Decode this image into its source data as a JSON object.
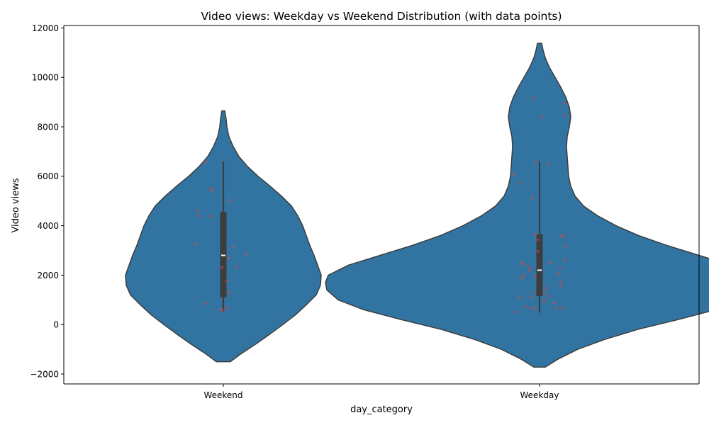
{
  "chart_data": {
    "type": "violin",
    "title": "Video views: Weekday vs Weekend Distribution (with data points)",
    "xlabel": "day_category",
    "ylabel": "Video views",
    "ylim": [
      -2400,
      12100
    ],
    "yticks": [
      -2000,
      0,
      2000,
      4000,
      6000,
      8000,
      10000,
      12000
    ],
    "ytick_labels": [
      "−2000",
      "0",
      "2000",
      "4000",
      "6000",
      "8000",
      "10000",
      "12000"
    ],
    "categories": [
      "Weekend",
      "Weekday"
    ],
    "grid": false,
    "colors": {
      "violin": "#3274a1",
      "violin_edge": "#3d3d3d",
      "box": "#3d3d3d",
      "median": "#ffffff",
      "points": "#e8413f"
    },
    "violins": [
      {
        "category": "Weekend",
        "box": {
          "q1": 1100,
          "median": 2800,
          "q3": 4550,
          "whisker_low": 520,
          "whisker_high": 6600
        },
        "density": [
          [
            -1500,
            0.1
          ],
          [
            -1200,
            0.24
          ],
          [
            -800,
            0.45
          ],
          [
            -400,
            0.65
          ],
          [
            0,
            0.84
          ],
          [
            400,
            1.02
          ],
          [
            800,
            1.17
          ],
          [
            1200,
            1.31
          ],
          [
            1600,
            1.37
          ],
          [
            2000,
            1.38
          ],
          [
            2400,
            1.33
          ],
          [
            2800,
            1.28
          ],
          [
            3200,
            1.22
          ],
          [
            3600,
            1.17
          ],
          [
            4000,
            1.12
          ],
          [
            4400,
            1.05
          ],
          [
            4800,
            0.96
          ],
          [
            5200,
            0.82
          ],
          [
            5600,
            0.66
          ],
          [
            6000,
            0.49
          ],
          [
            6400,
            0.34
          ],
          [
            6800,
            0.22
          ],
          [
            7200,
            0.14
          ],
          [
            7600,
            0.08
          ],
          [
            8000,
            0.05
          ],
          [
            8300,
            0.04
          ],
          [
            8650,
            0.02
          ]
        ],
        "points": [
          {
            "x": -0.25,
            "y": 6580
          },
          {
            "x": -0.18,
            "y": 5510
          },
          {
            "x": -0.15,
            "y": 5430
          },
          {
            "x": 0.09,
            "y": 5020
          },
          {
            "x": -0.37,
            "y": 4590
          },
          {
            "x": -0.35,
            "y": 4400
          },
          {
            "x": -0.19,
            "y": 4390
          },
          {
            "x": -0.39,
            "y": 3270
          },
          {
            "x": 0.14,
            "y": 3130
          },
          {
            "x": 0.32,
            "y": 2860
          },
          {
            "x": 0.08,
            "y": 2700
          },
          {
            "x": 0.19,
            "y": 2340
          },
          {
            "x": -0.02,
            "y": 2310
          },
          {
            "x": 0.05,
            "y": 1770
          },
          {
            "x": 0.09,
            "y": 1290
          },
          {
            "x": -0.25,
            "y": 860
          },
          {
            "x": 0.05,
            "y": 700
          },
          {
            "x": -0.04,
            "y": 610
          },
          {
            "x": 0.0,
            "y": 580
          }
        ]
      },
      {
        "category": "Weekday",
        "box": {
          "q1": 1150,
          "median": 2200,
          "q3": 3650,
          "whisker_low": 480,
          "whisker_high": 6600
        },
        "density": [
          [
            -1720,
            0.08
          ],
          [
            -1400,
            0.26
          ],
          [
            -1000,
            0.54
          ],
          [
            -600,
            0.92
          ],
          [
            -200,
            1.38
          ],
          [
            200,
            1.95
          ],
          [
            600,
            2.48
          ],
          [
            1000,
            2.84
          ],
          [
            1400,
            3.0
          ],
          [
            1700,
            3.02
          ],
          [
            2000,
            2.98
          ],
          [
            2400,
            2.7
          ],
          [
            2800,
            2.25
          ],
          [
            3200,
            1.8
          ],
          [
            3600,
            1.4
          ],
          [
            4000,
            1.08
          ],
          [
            4400,
            0.82
          ],
          [
            4800,
            0.62
          ],
          [
            5200,
            0.5
          ],
          [
            5600,
            0.44
          ],
          [
            6000,
            0.41
          ],
          [
            6400,
            0.4
          ],
          [
            6800,
            0.39
          ],
          [
            7200,
            0.38
          ],
          [
            7600,
            0.39
          ],
          [
            8000,
            0.42
          ],
          [
            8400,
            0.44
          ],
          [
            8800,
            0.42
          ],
          [
            9200,
            0.37
          ],
          [
            9600,
            0.3
          ],
          [
            10000,
            0.22
          ],
          [
            10400,
            0.14
          ],
          [
            10800,
            0.08
          ],
          [
            11100,
            0.05
          ],
          [
            11380,
            0.03
          ]
        ],
        "points": [
          {
            "x": -0.09,
            "y": 9150
          },
          {
            "x": 0.35,
            "y": 8960
          },
          {
            "x": 0.36,
            "y": 8480
          },
          {
            "x": 0.03,
            "y": 8400
          },
          {
            "x": -0.37,
            "y": 6080
          },
          {
            "x": -0.06,
            "y": 6580
          },
          {
            "x": 0.13,
            "y": 6480
          },
          {
            "x": -0.28,
            "y": 5720
          },
          {
            "x": -0.1,
            "y": 5120
          },
          {
            "x": -0.06,
            "y": 3650
          },
          {
            "x": -0.03,
            "y": 3420
          },
          {
            "x": 0.31,
            "y": 3560
          },
          {
            "x": 0.34,
            "y": 3600
          },
          {
            "x": 0.36,
            "y": 3180
          },
          {
            "x": -0.02,
            "y": 2960
          },
          {
            "x": 0.36,
            "y": 2640
          },
          {
            "x": -0.25,
            "y": 2500
          },
          {
            "x": 0.15,
            "y": 2500
          },
          {
            "x": -0.22,
            "y": 2420
          },
          {
            "x": -0.13,
            "y": 2310
          },
          {
            "x": 0.29,
            "y": 2290
          },
          {
            "x": -0.14,
            "y": 2180
          },
          {
            "x": 0.26,
            "y": 2060
          },
          {
            "x": -0.23,
            "y": 1990
          },
          {
            "x": -0.06,
            "y": 1930
          },
          {
            "x": -0.25,
            "y": 1880
          },
          {
            "x": 0.3,
            "y": 1770
          },
          {
            "x": 0.3,
            "y": 1580
          },
          {
            "x": 0.09,
            "y": 1460
          },
          {
            "x": -0.09,
            "y": 1320
          },
          {
            "x": 0.06,
            "y": 1280
          },
          {
            "x": 0.13,
            "y": 1160
          },
          {
            "x": -0.28,
            "y": 1090
          },
          {
            "x": -0.12,
            "y": 1110
          },
          {
            "x": 0.07,
            "y": 960
          },
          {
            "x": 0.2,
            "y": 880
          },
          {
            "x": -0.2,
            "y": 730
          },
          {
            "x": -0.11,
            "y": 660
          },
          {
            "x": -0.07,
            "y": 650
          },
          {
            "x": 0.24,
            "y": 650
          },
          {
            "x": 0.33,
            "y": 650
          },
          {
            "x": -0.33,
            "y": 510
          }
        ]
      }
    ]
  }
}
